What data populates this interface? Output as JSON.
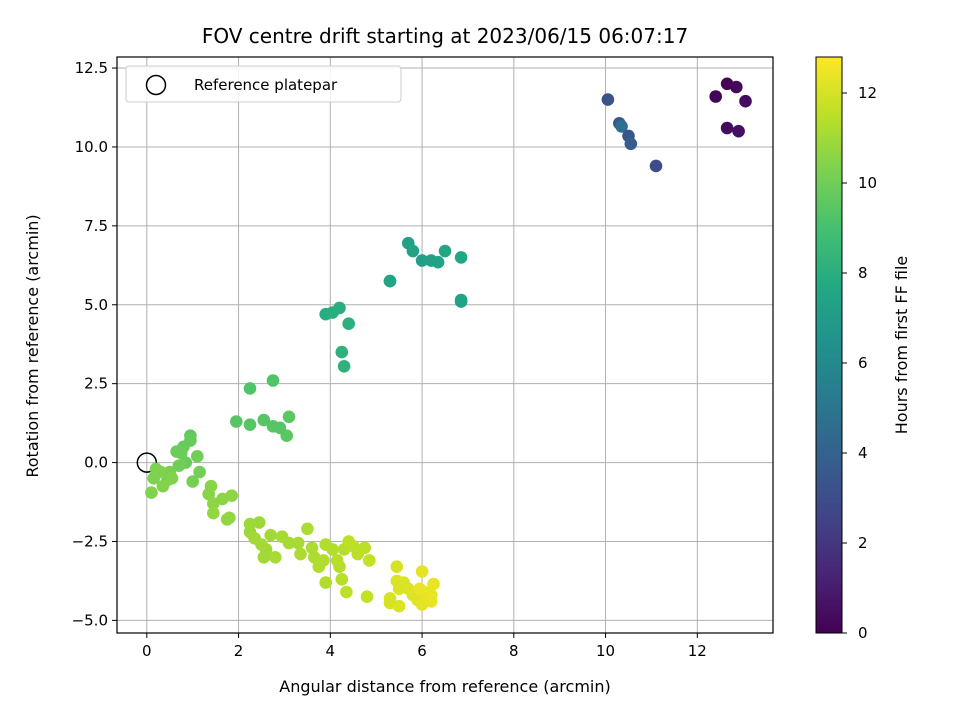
{
  "chart_data": {
    "type": "scatter",
    "title": "FOV centre drift starting at 2023/06/15 06:07:17",
    "xlabel": "Angular distance from reference (arcmin)",
    "ylabel": "Rotation from reference (arcmin)",
    "colorbar_label": "Hours from first FF file",
    "xlim": [
      -0.65,
      13.65
    ],
    "ylim": [
      -5.4,
      12.85
    ],
    "clim": [
      0,
      12.8
    ],
    "colormap": "viridis",
    "x_ticks": [
      0,
      2,
      4,
      6,
      8,
      10,
      12
    ],
    "y_ticks": [
      -5.0,
      -2.5,
      0.0,
      2.5,
      5.0,
      7.5,
      10.0,
      12.5
    ],
    "colorbar_ticks": [
      0,
      2,
      4,
      6,
      8,
      10,
      12
    ],
    "grid": true,
    "legend": {
      "placement": "top-left",
      "entries": [
        "Reference platepar"
      ]
    },
    "reference_point": {
      "x": 0,
      "y": 0
    },
    "points": [
      {
        "x": 12.4,
        "y": 11.6,
        "h": 0.1
      },
      {
        "x": 12.65,
        "y": 12.0,
        "h": 0.2
      },
      {
        "x": 12.85,
        "y": 11.9,
        "h": 0.3
      },
      {
        "x": 13.05,
        "y": 11.45,
        "h": 0.35
      },
      {
        "x": 12.65,
        "y": 10.6,
        "h": 0.4
      },
      {
        "x": 12.9,
        "y": 10.5,
        "h": 0.5
      },
      {
        "x": 10.05,
        "y": 11.5,
        "h": 3.2
      },
      {
        "x": 10.3,
        "y": 10.75,
        "h": 3.6
      },
      {
        "x": 10.35,
        "y": 10.65,
        "h": 4.6
      },
      {
        "x": 10.5,
        "y": 10.35,
        "h": 3.4
      },
      {
        "x": 10.55,
        "y": 10.1,
        "h": 3.8
      },
      {
        "x": 11.1,
        "y": 9.4,
        "h": 3.0
      },
      {
        "x": 5.7,
        "y": 6.95,
        "h": 7.3
      },
      {
        "x": 5.8,
        "y": 6.7,
        "h": 7.4
      },
      {
        "x": 6.0,
        "y": 6.4,
        "h": 7.2
      },
      {
        "x": 6.2,
        "y": 6.4,
        "h": 7.3
      },
      {
        "x": 6.35,
        "y": 6.35,
        "h": 7.4
      },
      {
        "x": 6.5,
        "y": 6.7,
        "h": 7.5
      },
      {
        "x": 6.85,
        "y": 6.5,
        "h": 7.6
      },
      {
        "x": 6.85,
        "y": 5.15,
        "h": 7.5
      },
      {
        "x": 6.85,
        "y": 5.1,
        "h": 7.4
      },
      {
        "x": 5.3,
        "y": 5.75,
        "h": 7.7
      },
      {
        "x": 5.3,
        "y": 5.75,
        "h": 7.5
      },
      {
        "x": 3.9,
        "y": 4.7,
        "h": 7.9
      },
      {
        "x": 4.05,
        "y": 4.75,
        "h": 8.0
      },
      {
        "x": 4.2,
        "y": 4.9,
        "h": 8.0
      },
      {
        "x": 4.4,
        "y": 4.4,
        "h": 8.1
      },
      {
        "x": 4.25,
        "y": 3.5,
        "h": 8.2
      },
      {
        "x": 4.3,
        "y": 3.05,
        "h": 8.2
      },
      {
        "x": 2.25,
        "y": 2.35,
        "h": 9.3
      },
      {
        "x": 2.75,
        "y": 2.6,
        "h": 9.3
      },
      {
        "x": 1.95,
        "y": 1.3,
        "h": 9.4
      },
      {
        "x": 2.25,
        "y": 1.2,
        "h": 9.4
      },
      {
        "x": 2.55,
        "y": 1.35,
        "h": 9.4
      },
      {
        "x": 2.75,
        "y": 1.15,
        "h": 9.4
      },
      {
        "x": 2.9,
        "y": 1.1,
        "h": 9.4
      },
      {
        "x": 3.1,
        "y": 1.45,
        "h": 9.5
      },
      {
        "x": 3.05,
        "y": 0.85,
        "h": 9.5
      },
      {
        "x": 0.95,
        "y": 0.85,
        "h": 9.7
      },
      {
        "x": 0.95,
        "y": 0.7,
        "h": 9.8
      },
      {
        "x": 0.8,
        "y": 0.5,
        "h": 9.8
      },
      {
        "x": 0.65,
        "y": 0.35,
        "h": 9.9
      },
      {
        "x": 0.75,
        "y": 0.3,
        "h": 9.9
      },
      {
        "x": 0.85,
        "y": 0.0,
        "h": 9.9
      },
      {
        "x": 0.7,
        "y": -0.1,
        "h": 10.0
      },
      {
        "x": 1.1,
        "y": 0.2,
        "h": 10.0
      },
      {
        "x": 1.15,
        "y": -0.3,
        "h": 10.1
      },
      {
        "x": 1.0,
        "y": -0.6,
        "h": 10.1
      },
      {
        "x": 0.5,
        "y": -0.3,
        "h": 10.2
      },
      {
        "x": 0.45,
        "y": -0.55,
        "h": 10.2
      },
      {
        "x": 0.3,
        "y": -0.3,
        "h": 10.3
      },
      {
        "x": 0.2,
        "y": -0.2,
        "h": 10.3
      },
      {
        "x": 0.15,
        "y": -0.5,
        "h": 10.3
      },
      {
        "x": 0.35,
        "y": -0.75,
        "h": 10.4
      },
      {
        "x": 0.1,
        "y": -0.95,
        "h": 10.4
      },
      {
        "x": 0.55,
        "y": -0.5,
        "h": 10.4
      },
      {
        "x": 1.4,
        "y": -0.75,
        "h": 10.5
      },
      {
        "x": 1.35,
        "y": -1.0,
        "h": 10.5
      },
      {
        "x": 1.45,
        "y": -1.3,
        "h": 10.6
      },
      {
        "x": 1.65,
        "y": -1.15,
        "h": 10.6
      },
      {
        "x": 1.85,
        "y": -1.05,
        "h": 10.6
      },
      {
        "x": 1.45,
        "y": -1.6,
        "h": 10.7
      },
      {
        "x": 1.75,
        "y": -1.8,
        "h": 10.7
      },
      {
        "x": 1.8,
        "y": -1.75,
        "h": 10.7
      },
      {
        "x": 2.25,
        "y": -1.95,
        "h": 10.9
      },
      {
        "x": 2.45,
        "y": -1.9,
        "h": 10.9
      },
      {
        "x": 2.25,
        "y": -2.2,
        "h": 10.9
      },
      {
        "x": 2.35,
        "y": -2.4,
        "h": 11.0
      },
      {
        "x": 2.5,
        "y": -2.6,
        "h": 11.0
      },
      {
        "x": 2.6,
        "y": -2.75,
        "h": 11.0
      },
      {
        "x": 2.55,
        "y": -3.0,
        "h": 11.0
      },
      {
        "x": 2.8,
        "y": -3.0,
        "h": 11.1
      },
      {
        "x": 2.7,
        "y": -2.3,
        "h": 11.0
      },
      {
        "x": 2.95,
        "y": -2.35,
        "h": 11.1
      },
      {
        "x": 3.1,
        "y": -2.55,
        "h": 11.1
      },
      {
        "x": 3.3,
        "y": -2.55,
        "h": 11.1
      },
      {
        "x": 3.35,
        "y": -2.9,
        "h": 11.2
      },
      {
        "x": 3.5,
        "y": -2.1,
        "h": 11.2
      },
      {
        "x": 3.6,
        "y": -2.7,
        "h": 11.2
      },
      {
        "x": 3.65,
        "y": -3.0,
        "h": 11.2
      },
      {
        "x": 3.75,
        "y": -3.3,
        "h": 11.3
      },
      {
        "x": 3.85,
        "y": -3.1,
        "h": 11.3
      },
      {
        "x": 3.9,
        "y": -2.6,
        "h": 11.3
      },
      {
        "x": 3.9,
        "y": -3.8,
        "h": 11.3
      },
      {
        "x": 4.05,
        "y": -2.75,
        "h": 11.3
      },
      {
        "x": 4.15,
        "y": -3.1,
        "h": 11.4
      },
      {
        "x": 4.2,
        "y": -3.3,
        "h": 11.4
      },
      {
        "x": 4.25,
        "y": -3.7,
        "h": 11.4
      },
      {
        "x": 4.3,
        "y": -2.75,
        "h": 11.4
      },
      {
        "x": 4.35,
        "y": -4.1,
        "h": 11.5
      },
      {
        "x": 4.4,
        "y": -2.5,
        "h": 11.5
      },
      {
        "x": 4.5,
        "y": -2.65,
        "h": 11.5
      },
      {
        "x": 4.6,
        "y": -2.9,
        "h": 11.5
      },
      {
        "x": 4.75,
        "y": -2.7,
        "h": 11.5
      },
      {
        "x": 4.85,
        "y": -3.1,
        "h": 11.6
      },
      {
        "x": 4.8,
        "y": -4.25,
        "h": 11.6
      },
      {
        "x": 5.3,
        "y": -4.3,
        "h": 12.0
      },
      {
        "x": 5.3,
        "y": -4.45,
        "h": 12.0
      },
      {
        "x": 5.45,
        "y": -3.3,
        "h": 12.0
      },
      {
        "x": 5.45,
        "y": -3.75,
        "h": 12.1
      },
      {
        "x": 5.5,
        "y": -4.0,
        "h": 12.1
      },
      {
        "x": 5.5,
        "y": -4.55,
        "h": 12.1
      },
      {
        "x": 5.6,
        "y": -3.8,
        "h": 12.1
      },
      {
        "x": 5.7,
        "y": -4.0,
        "h": 12.2
      },
      {
        "x": 5.8,
        "y": -4.2,
        "h": 12.2
      },
      {
        "x": 5.9,
        "y": -4.35,
        "h": 12.2
      },
      {
        "x": 6.0,
        "y": -3.45,
        "h": 12.3
      },
      {
        "x": 6.05,
        "y": -4.1,
        "h": 12.3
      },
      {
        "x": 6.1,
        "y": -4.3,
        "h": 12.3
      },
      {
        "x": 6.0,
        "y": -4.5,
        "h": 12.3
      },
      {
        "x": 6.2,
        "y": -4.2,
        "h": 12.4
      },
      {
        "x": 6.2,
        "y": -4.4,
        "h": 12.4
      },
      {
        "x": 6.25,
        "y": -3.85,
        "h": 12.4
      },
      {
        "x": 5.95,
        "y": -4.0,
        "h": 12.4
      }
    ]
  }
}
